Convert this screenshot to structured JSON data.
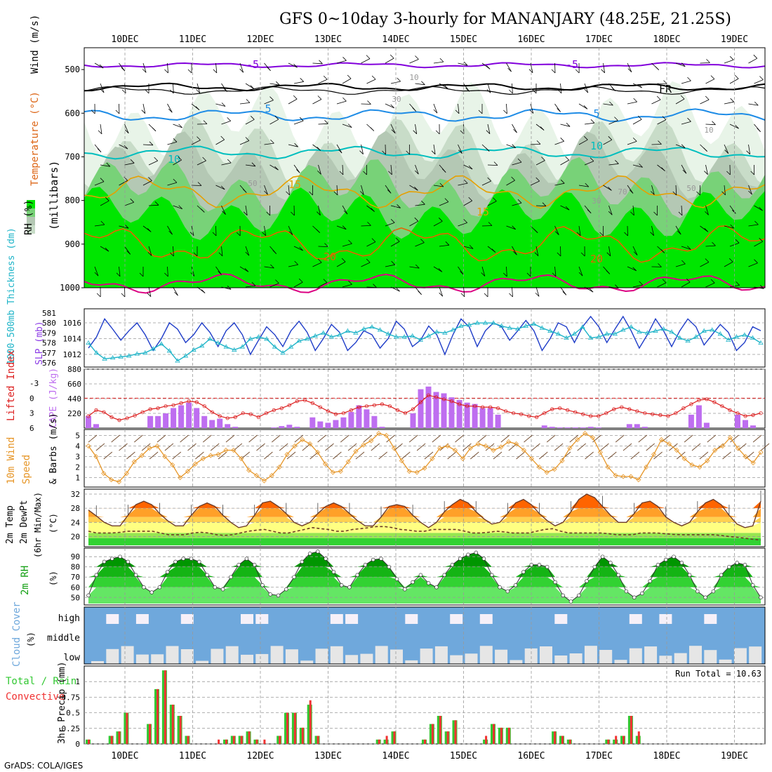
{
  "header": {
    "title": "GFS 0~10day 3-hourly for MANANJARY (48.25E, 21.25S)",
    "credit": "GrADS: COLA/IGES"
  },
  "colors": {
    "rh_fill": [
      "#e8f4e8",
      "#c8dcc8",
      "#b4c8b4",
      "#78d278",
      "#00e600"
    ],
    "temp_lines": {
      "-5": "#8200dc",
      "FR": "#000000",
      "5": "#1e8ce6",
      "10": "#00bebe",
      "15": "#e6a000",
      "20": "#e66400",
      "25": "#dc0082"
    },
    "slp_line": "#1e3cc8",
    "thickness_line": "#1eb4c8",
    "li_line": "#dc1e1e",
    "cape_bars": "#be6ef0",
    "wind_speed_line": "#e69628",
    "temp_fills": [
      "#ff6400",
      "#ffa028",
      "#ffd050",
      "#ffff82",
      "#96e650",
      "#32d232"
    ],
    "rh2m_fills": [
      "#009600",
      "#14b414",
      "#32d232",
      "#64e664"
    ],
    "cloud_bg": "#6fa8dc",
    "cloud_fill": "#e6e6e6",
    "cloud_high": "#f6f0f8",
    "precip_total": "#32c832",
    "precip_conv": "#f03232"
  },
  "chart_data": [
    {
      "panel": "upper-air",
      "type": "heatmap",
      "ylabels": [
        "RH (%)",
        "Temperature (°C)",
        "Wind (m/s)",
        "(millibars)"
      ],
      "yticks": [
        500,
        600,
        700,
        800,
        900,
        1000
      ],
      "x_ticks": [
        "10DEC",
        "11DEC",
        "12DEC",
        "13DEC",
        "14DEC",
        "15DEC",
        "16DEC",
        "17DEC",
        "18DEC",
        "19DEC"
      ],
      "contour_labels": [
        "-5",
        "-5",
        "FR",
        "5",
        "5",
        "10",
        "10",
        "15",
        "15",
        "20",
        "20",
        "10",
        "10",
        "30",
        "30",
        "50",
        "50",
        "70"
      ],
      "ylim": [
        1000,
        450
      ]
    },
    {
      "panel": "slp-thickness",
      "type": "line",
      "ylabel_left": "1000-500mb Thickness (dm)",
      "ylabel_right": "SLP (mb)",
      "left_ticks": [
        576,
        577,
        578,
        579,
        580,
        581
      ],
      "right_ticks": [
        1012,
        1014,
        1016
      ],
      "series": [
        {
          "name": "SLP",
          "axis": "right",
          "values": [
            1012.8,
            1014.2,
            1016.5,
            1015.2,
            1013.8,
            1015.0,
            1016.0,
            1014.5,
            1012.5,
            1014.0,
            1016.0,
            1015.2,
            1013.5,
            1014.5,
            1016.0,
            1014.8,
            1013.0,
            1015.0,
            1016.0,
            1014.5,
            1012.0,
            1013.8,
            1015.5,
            1014.5,
            1013.0,
            1015.0,
            1016.2,
            1014.8,
            1012.5,
            1014.0,
            1015.8,
            1014.8,
            1012.5,
            1013.5,
            1015.0,
            1014.5,
            1012.8,
            1014.0,
            1016.2,
            1015.2,
            1013.0,
            1013.8,
            1015.6,
            1014.5,
            1012.0,
            1014.5,
            1016.5,
            1015.5,
            1013.0,
            1015.0,
            1016.0,
            1015.5,
            1013.8,
            1015.0,
            1016.3,
            1015.0,
            1012.5,
            1014.0,
            1016.0,
            1015.5,
            1013.5,
            1015.5,
            1016.8,
            1015.5,
            1013.5,
            1015.2,
            1016.8,
            1015.0,
            1012.8,
            1014.5,
            1016.5,
            1015.0,
            1013.0,
            1015.0,
            1016.5,
            1015.5,
            1013.2,
            1014.5,
            1015.8,
            1014.8,
            1012.5,
            1013.5,
            1015.5,
            1015.0
          ]
        },
        {
          "name": "Thickness",
          "axis": "left",
          "values": [
            578.0,
            577.0,
            576.4,
            576.5,
            576.6,
            576.7,
            576.9,
            577.0,
            577.4,
            577.9,
            577.2,
            576.2,
            576.7,
            577.3,
            577.7,
            578.4,
            578.0,
            577.6,
            577.3,
            577.6,
            578.4,
            578.6,
            578.4,
            577.6,
            577.0,
            577.6,
            578.2,
            578.4,
            578.7,
            579.0,
            578.6,
            578.8,
            579.2,
            579.0,
            579.4,
            579.6,
            579.3,
            578.9,
            578.6,
            578.6,
            578.7,
            578.3,
            578.7,
            579.1,
            579.0,
            579.3,
            579.7,
            579.8,
            580.0,
            580.0,
            580.0,
            579.7,
            579.5,
            579.4,
            579.7,
            579.9,
            579.5,
            579.2,
            578.9,
            578.5,
            578.9,
            579.6,
            578.5,
            578.6,
            578.9,
            578.9,
            579.3,
            579.6,
            579.1,
            579.0,
            579.2,
            579.4,
            579.1,
            578.5,
            578.2,
            578.6,
            579.2,
            579.3,
            578.9,
            578.3,
            578.6,
            578.8,
            578.5,
            578.0
          ]
        }
      ]
    },
    {
      "panel": "cape-li",
      "type": "bar",
      "ylabel_left": "Lifted Index",
      "ylabel_right": "CAPE (J/kg)",
      "left_ticks": [
        "-3",
        "0",
        "3",
        "6"
      ],
      "right_ticks": [
        220,
        440,
        660,
        880
      ],
      "series": [
        {
          "name": "CAPE",
          "values": [
            180,
            60,
            0,
            0,
            0,
            0,
            0,
            0,
            180,
            180,
            220,
            300,
            340,
            380,
            300,
            180,
            120,
            140,
            60,
            20,
            0,
            0,
            0,
            0,
            10,
            30,
            50,
            20,
            0,
            160,
            100,
            80,
            120,
            160,
            240,
            340,
            280,
            180,
            20,
            0,
            0,
            0,
            220,
            580,
            620,
            540,
            520,
            460,
            420,
            380,
            360,
            300,
            300,
            200,
            0,
            0,
            0,
            0,
            0,
            40,
            20,
            10,
            10,
            10,
            10,
            20,
            10,
            0,
            0,
            0,
            60,
            60,
            20,
            0,
            0,
            0,
            0,
            0,
            200,
            340,
            80,
            0,
            0,
            0,
            200,
            120,
            40,
            0
          ]
        },
        {
          "name": "Lifted Index",
          "values": [
            3.6,
            2.4,
            2.8,
            3.8,
            4.4,
            4.0,
            3.5,
            2.8,
            2.2,
            2.0,
            1.6,
            1.4,
            1.0,
            0.6,
            0.8,
            1.6,
            2.8,
            3.6,
            4.0,
            3.8,
            3.0,
            3.2,
            3.8,
            3.0,
            2.4,
            2.0,
            1.4,
            0.6,
            0.4,
            1.0,
            1.8,
            2.6,
            3.2,
            3.0,
            2.4,
            1.8,
            1.6,
            1.4,
            1.2,
            1.6,
            2.4,
            3.0,
            2.2,
            0.8,
            -0.6,
            -0.2,
            0.2,
            0.6,
            1.2,
            1.6,
            1.6,
            1.8,
            1.8,
            2.0,
            2.6,
            3.0,
            3.2,
            3.6,
            3.8,
            3.0,
            2.2,
            2.0,
            2.4,
            2.8,
            3.2,
            3.6,
            3.6,
            3.0,
            2.2,
            1.8,
            2.2,
            2.6,
            3.0,
            3.2,
            3.4,
            3.6,
            3.0,
            2.0,
            1.2,
            0.4,
            0.2,
            0.8,
            1.6,
            2.4,
            3.0,
            3.6,
            3.4,
            3.0
          ]
        }
      ]
    },
    {
      "panel": "wind",
      "type": "line",
      "ylabel": "10m Wind Speed & Barbs (m/s)",
      "yticks": [
        1,
        2,
        3,
        4,
        5
      ],
      "series": [
        {
          "name": "Speed",
          "values": [
            4.0,
            3.0,
            1.4,
            0.8,
            0.6,
            1.4,
            2.5,
            3.1,
            3.8,
            4.0,
            3.0,
            2.2,
            1.0,
            1.6,
            2.3,
            2.8,
            3.1,
            3.2,
            3.6,
            3.6,
            2.8,
            1.7,
            1.2,
            0.7,
            1.2,
            2.0,
            3.2,
            4.0,
            4.6,
            4.2,
            3.4,
            2.3,
            1.5,
            1.6,
            2.5,
            3.5,
            4.1,
            4.5,
            5.2,
            5.0,
            3.8,
            2.6,
            1.6,
            1.5,
            1.9,
            2.8,
            3.8,
            4.0,
            3.6,
            2.8,
            3.8,
            4.2,
            4.0,
            3.6,
            3.9,
            4.4,
            4.2,
            3.6,
            2.8,
            2.0,
            1.5,
            1.8,
            2.6,
            3.8,
            4.6,
            5.2,
            4.8,
            3.4,
            2.0,
            1.2,
            1.1,
            1.1,
            0.8,
            2.0,
            3.2,
            4.6,
            4.2,
            3.6,
            2.8,
            2.2,
            2.0,
            2.6,
            3.6,
            4.0,
            4.8,
            3.8,
            3.0,
            2.4,
            3.4
          ]
        }
      ]
    },
    {
      "panel": "temperature",
      "type": "area",
      "ylabel": "2m Temp 2m DewPt (6hr Min/Max) (°C)",
      "yticks": [
        20,
        24,
        28,
        32
      ],
      "series": [
        {
          "name": "2m Temp",
          "values": [
            27.5,
            25.8,
            24.0,
            23.0,
            23.0,
            26.0,
            29.0,
            30.0,
            29.0,
            26.5,
            24.5,
            23.0,
            23.0,
            26.0,
            28.5,
            29.5,
            28.5,
            26.0,
            24.0,
            22.5,
            23.0,
            26.0,
            29.5,
            30.0,
            28.5,
            26.5,
            24.0,
            23.0,
            24.0,
            26.5,
            28.5,
            29.5,
            28.5,
            26.5,
            24.5,
            23.0,
            23.0,
            25.5,
            28.5,
            29.0,
            28.5,
            26.0,
            24.0,
            22.5,
            24.0,
            27.0,
            29.0,
            30.5,
            29.5,
            27.0,
            25.0,
            23.5,
            24.0,
            26.5,
            29.5,
            30.5,
            29.0,
            26.5,
            24.5,
            23.0,
            24.0,
            27.0,
            30.5,
            32.0,
            31.0,
            28.5,
            26.0,
            24.0,
            24.0,
            26.5,
            29.5,
            30.0,
            28.5,
            25.5,
            24.0,
            23.0,
            24.0,
            27.0,
            29.5,
            30.5,
            29.0,
            26.0,
            23.5,
            22.5,
            23.0,
            30.0
          ]
        },
        {
          "name": "2m DewPt",
          "values": [
            21.5,
            21.0,
            21.0,
            21.0,
            21.2,
            21.5,
            21.5,
            21.5,
            21.5,
            21.0,
            20.5,
            20.5,
            20.5,
            21.0,
            21.2,
            21.0,
            20.5,
            20.3,
            20.5,
            21.0,
            21.5,
            21.8,
            22.0,
            21.5,
            21.0,
            21.0,
            21.5,
            22.0,
            22.5,
            22.2,
            22.0,
            21.5,
            21.5,
            22.0,
            22.2,
            22.5,
            22.8,
            22.8,
            22.5,
            22.0,
            21.8,
            21.5,
            21.5,
            22.0,
            22.0,
            22.0,
            22.0,
            21.5,
            21.0,
            21.0,
            21.2,
            21.5,
            21.3,
            21.0,
            21.0,
            21.0,
            21.5,
            22.0,
            22.2,
            21.5,
            21.0,
            21.0,
            21.0,
            21.0,
            21.0,
            20.8,
            20.5,
            20.5,
            20.5,
            21.0,
            21.0,
            21.0,
            20.8,
            20.6,
            20.5,
            20.5,
            20.5,
            20.5,
            20.5,
            20.3,
            20.0,
            19.8,
            19.5,
            19.2,
            19.0
          ]
        }
      ]
    },
    {
      "panel": "rh2m",
      "type": "area",
      "ylabel": "2m RH (%)",
      "yticks": [
        50,
        60,
        70,
        80,
        90
      ],
      "series": [
        {
          "name": "2m RH",
          "values": [
            52,
            72,
            85,
            88,
            90,
            85,
            72,
            60,
            55,
            60,
            75,
            85,
            88,
            88,
            85,
            72,
            60,
            58,
            70,
            82,
            88,
            82,
            62,
            53,
            52,
            58,
            70,
            85,
            93,
            95,
            88,
            75,
            62,
            60,
            72,
            82,
            87,
            88,
            80,
            68,
            58,
            65,
            72,
            64,
            60,
            72,
            82,
            88,
            92,
            94,
            88,
            72,
            60,
            56,
            62,
            75,
            82,
            82,
            80,
            65,
            52,
            46,
            52,
            66,
            80,
            90,
            84,
            72,
            56,
            50,
            54,
            66,
            82,
            87,
            90,
            84,
            72,
            56,
            50,
            56,
            72,
            80,
            84,
            82,
            62,
            50
          ]
        }
      ]
    },
    {
      "panel": "cloud",
      "type": "area",
      "ylabel": "Cloud Cover (%)",
      "levels": [
        "high",
        "middle",
        "low"
      ]
    },
    {
      "panel": "precip",
      "type": "bar",
      "ylabel": "3hr Precip (mm)",
      "ylabel_left": [
        "Total / Rain",
        "Convective"
      ],
      "run_total_label": "Run Total = 10.63",
      "yticks": [
        "0",
        "0.25",
        "0.5",
        "0.75",
        "1"
      ],
      "ylim": [
        0,
        1.25
      ],
      "x_ticks": [
        "10DEC",
        "11DEC",
        "12DEC",
        "13DEC",
        "14DEC",
        "15DEC",
        "16DEC",
        "17DEC",
        "18DEC",
        "19DEC"
      ],
      "series": [
        {
          "name": "Total",
          "values": [
            0.07,
            0,
            0,
            0.13,
            0.2,
            0.5,
            0,
            0,
            0.32,
            0.88,
            1.18,
            0.63,
            0.45,
            0.13,
            0,
            0,
            0,
            0,
            0.07,
            0.13,
            0.13,
            0.2,
            0.07,
            0,
            0,
            0.13,
            0.5,
            0.5,
            0.26,
            0.63,
            0.13,
            0,
            0,
            0,
            0,
            0,
            0,
            0,
            0.07,
            0.07,
            0.2,
            0,
            0,
            0,
            0.07,
            0.32,
            0.45,
            0.2,
            0.38,
            0,
            0,
            0,
            0.07,
            0.32,
            0.26,
            0.26,
            0,
            0,
            0,
            0,
            0,
            0.2,
            0.13,
            0.07,
            0,
            0,
            0,
            0,
            0.07,
            0.07,
            0.13,
            0.45,
            0.13,
            0,
            0,
            0,
            0,
            0,
            0,
            0,
            0,
            0,
            0,
            0,
            0,
            0,
            0,
            0,
            0
          ]
        },
        {
          "name": "Convective",
          "values": [
            0.07,
            0,
            0,
            0.13,
            0.2,
            0.5,
            0,
            0,
            0.32,
            0.88,
            1.18,
            0.63,
            0.45,
            0.13,
            0,
            0,
            0,
            0.07,
            0.07,
            0.13,
            0.13,
            0.2,
            0.07,
            0.07,
            0,
            0.13,
            0.5,
            0.5,
            0.26,
            0.7,
            0.13,
            0,
            0,
            0,
            0,
            0,
            0,
            0,
            0.07,
            0.13,
            0.2,
            0,
            0,
            0,
            0.07,
            0.32,
            0.45,
            0.2,
            0.38,
            0,
            0,
            0,
            0.13,
            0.32,
            0.26,
            0.26,
            0,
            0,
            0,
            0,
            0,
            0.2,
            0.13,
            0.07,
            0,
            0,
            0,
            0,
            0.07,
            0.13,
            0.13,
            0.45,
            0.2,
            0,
            0,
            0,
            0,
            0,
            0,
            0,
            0,
            0,
            0,
            0,
            0,
            0,
            0,
            0,
            0
          ]
        }
      ]
    }
  ]
}
